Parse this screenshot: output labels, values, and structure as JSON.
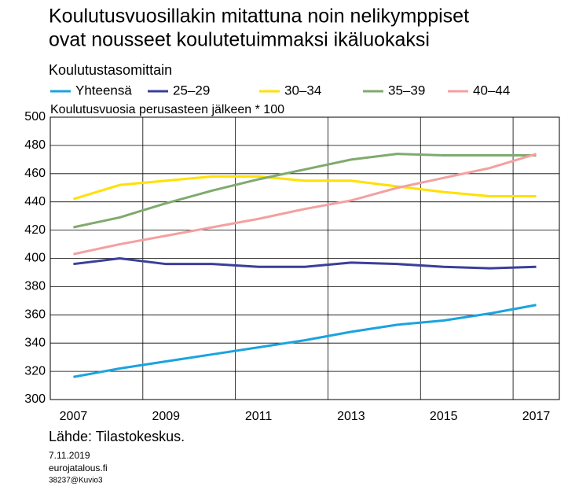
{
  "chart_data": {
    "type": "line",
    "title": [
      "Koulutusvuosillakin mitattuna noin nelikymppiset",
      "ovat nousseet koulutetuimmaksi ikäluokaksi"
    ],
    "subtitle": "Koulutustasomittain",
    "y_label": "Koulutusvuosia perusasteen jälkeen * 100",
    "source": "Lähde: Tilastokeskus.",
    "footer": [
      "7.11.2019",
      "eurojatalous.fi",
      "38237@Kuvio3"
    ],
    "x": [
      2007,
      2008,
      2009,
      2010,
      2011,
      2012,
      2013,
      2014,
      2015,
      2016,
      2017
    ],
    "xlim": [
      2006.5,
      2017.5
    ],
    "xticks": [
      2007,
      2009,
      2011,
      2013,
      2015,
      2017
    ],
    "ylim": [
      300,
      500
    ],
    "yticks": [
      300,
      320,
      340,
      360,
      380,
      400,
      420,
      440,
      460,
      480,
      500
    ],
    "grid": true,
    "legend": "top",
    "series": [
      {
        "name": "Yhteensä",
        "color": "#1aa3e0",
        "values": [
          316,
          322,
          327,
          332,
          337,
          342,
          348,
          353,
          356,
          361,
          367
        ]
      },
      {
        "name": "25–29",
        "color": "#3b3f99",
        "values": [
          396,
          400,
          396,
          396,
          394,
          394,
          397,
          396,
          394,
          393,
          394
        ]
      },
      {
        "name": "30–34",
        "color": "#ffe000",
        "values": [
          442,
          452,
          455,
          458,
          458,
          455,
          455,
          451,
          447,
          444,
          444
        ]
      },
      {
        "name": "35–39",
        "color": "#7faa6e",
        "values": [
          422,
          429,
          439,
          448,
          456,
          463,
          470,
          474,
          473,
          473,
          473
        ]
      },
      {
        "name": "40–44",
        "color": "#f4a0a0",
        "values": [
          403,
          410,
          416,
          422,
          428,
          435,
          441,
          450,
          457,
          464,
          474
        ]
      }
    ]
  }
}
